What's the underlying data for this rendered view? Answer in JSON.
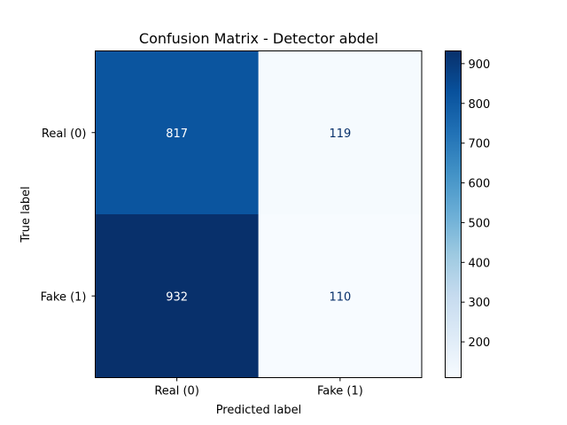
{
  "chart_data": {
    "type": "heatmap",
    "title": "Confusion Matrix - Detector abdel",
    "xlabel": "Predicted label",
    "ylabel": "True label",
    "x_categories": [
      "Real (0)",
      "Fake (1)"
    ],
    "y_categories": [
      "Real (0)",
      "Fake (1)"
    ],
    "values": [
      [
        817,
        119
      ],
      [
        932,
        110
      ]
    ],
    "colormap": "Blues",
    "color_range": [
      110,
      932
    ],
    "colorbar_ticks": [
      200,
      300,
      400,
      500,
      600,
      700,
      800,
      900
    ],
    "colorbar_position": "right",
    "grid": false
  }
}
